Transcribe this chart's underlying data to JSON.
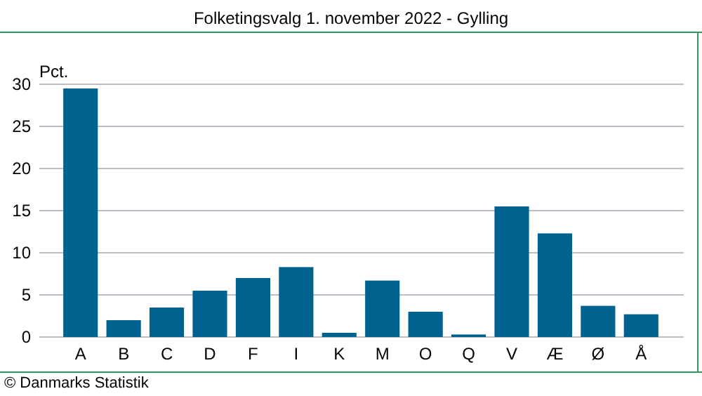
{
  "chart_data": {
    "type": "bar",
    "title": "Folketingsvalg 1. november 2022 - Gylling",
    "ylabel": "Pct.",
    "categories": [
      "A",
      "B",
      "C",
      "D",
      "F",
      "I",
      "K",
      "M",
      "O",
      "Q",
      "V",
      "Æ",
      "Ø",
      "Å"
    ],
    "values": [
      29.5,
      2.0,
      3.5,
      5.5,
      7.0,
      8.3,
      0.5,
      6.7,
      3.0,
      0.3,
      15.5,
      12.3,
      3.7,
      2.7
    ],
    "color": "#00628f",
    "ylim": [
      0,
      30
    ],
    "yticks": [
      0,
      5,
      10,
      15,
      20,
      25,
      30
    ],
    "grid": "y",
    "annotations": [
      "© Danmarks Statistik"
    ]
  }
}
